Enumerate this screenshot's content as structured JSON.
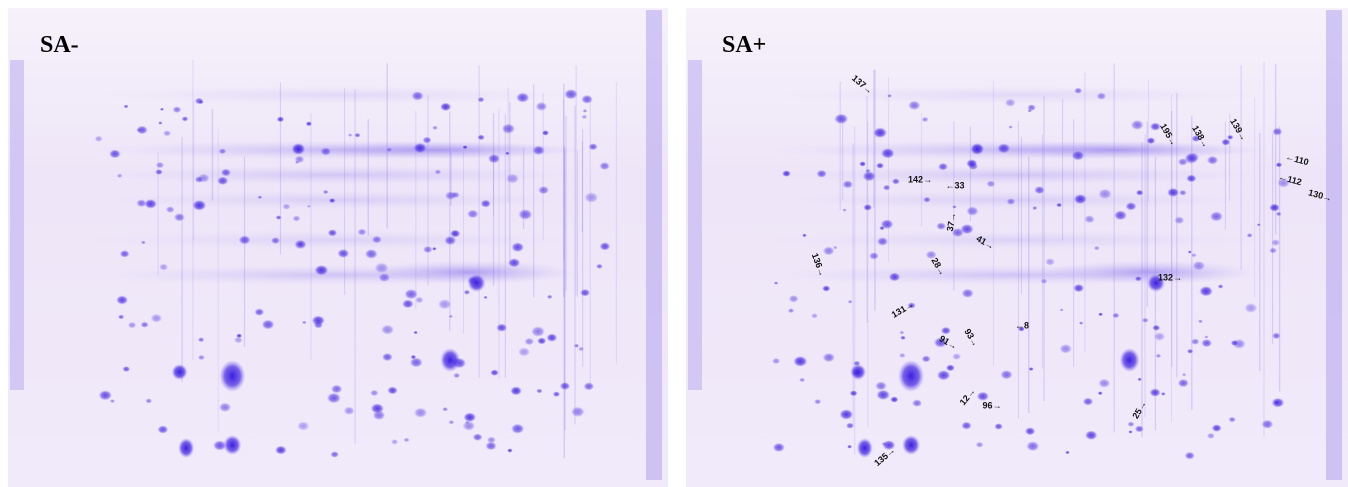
{
  "panels": [
    {
      "label": "SA-"
    },
    {
      "label": "SA+",
      "annotations": [
        "137→",
        "195→",
        "138→",
        "139→",
        "←110",
        "←112",
        "130→",
        "142→",
        "←33",
        "37→",
        "41→",
        "136→",
        "28→",
        "132→",
        "131→",
        "←8",
        "91→",
        "93→",
        "12→",
        "96→",
        "25→",
        "135→"
      ]
    }
  ]
}
